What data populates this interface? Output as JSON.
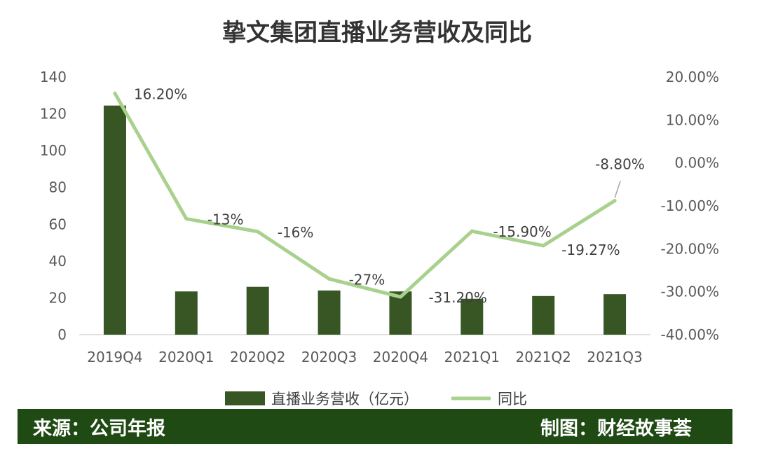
{
  "chart_data": {
    "type": "bar",
    "title": "挚文集团直播业务营收及同比",
    "categories": [
      "2019Q4",
      "2020Q1",
      "2020Q2",
      "2020Q3",
      "2020Q4",
      "2021Q1",
      "2021Q2",
      "2021Q3"
    ],
    "series": [
      {
        "name": "直播业务营收（亿元）",
        "type": "bar",
        "axis": "left",
        "color": "#375623",
        "values": [
          124.5,
          23.5,
          26,
          24,
          23.5,
          19.5,
          21,
          22
        ]
      },
      {
        "name": "同比",
        "type": "line",
        "axis": "right",
        "color": "#a9d18e",
        "values": [
          16.2,
          -13,
          -16,
          -27,
          -31.2,
          -15.9,
          -19.27,
          -8.8
        ],
        "labels": [
          "16.20%",
          "-13%",
          "-16%",
          "-27%",
          "-31.20%",
          "-15.90%",
          "-19.27%",
          "-8.80%"
        ]
      }
    ],
    "left_axis": {
      "ylim": [
        0,
        140
      ],
      "ticks": [
        0,
        20,
        40,
        60,
        80,
        100,
        120,
        140
      ],
      "tick_labels": [
        "0",
        "20",
        "40",
        "60",
        "80",
        "100",
        "120",
        "140"
      ]
    },
    "right_axis": {
      "ylim": [
        -40,
        20
      ],
      "ticks": [
        -40,
        -30,
        -20,
        -10,
        0,
        10,
        20
      ],
      "tick_labels": [
        "-40.00%",
        "-30.00%",
        "-20.00%",
        "-10.00%",
        "0.00%",
        "10.00%",
        "20.00%"
      ]
    },
    "grid": false,
    "legend_position": "bottom"
  },
  "footer": {
    "source": "来源：公司年报",
    "credit": "制图：财经故事荟",
    "background": "#1f4a14"
  }
}
